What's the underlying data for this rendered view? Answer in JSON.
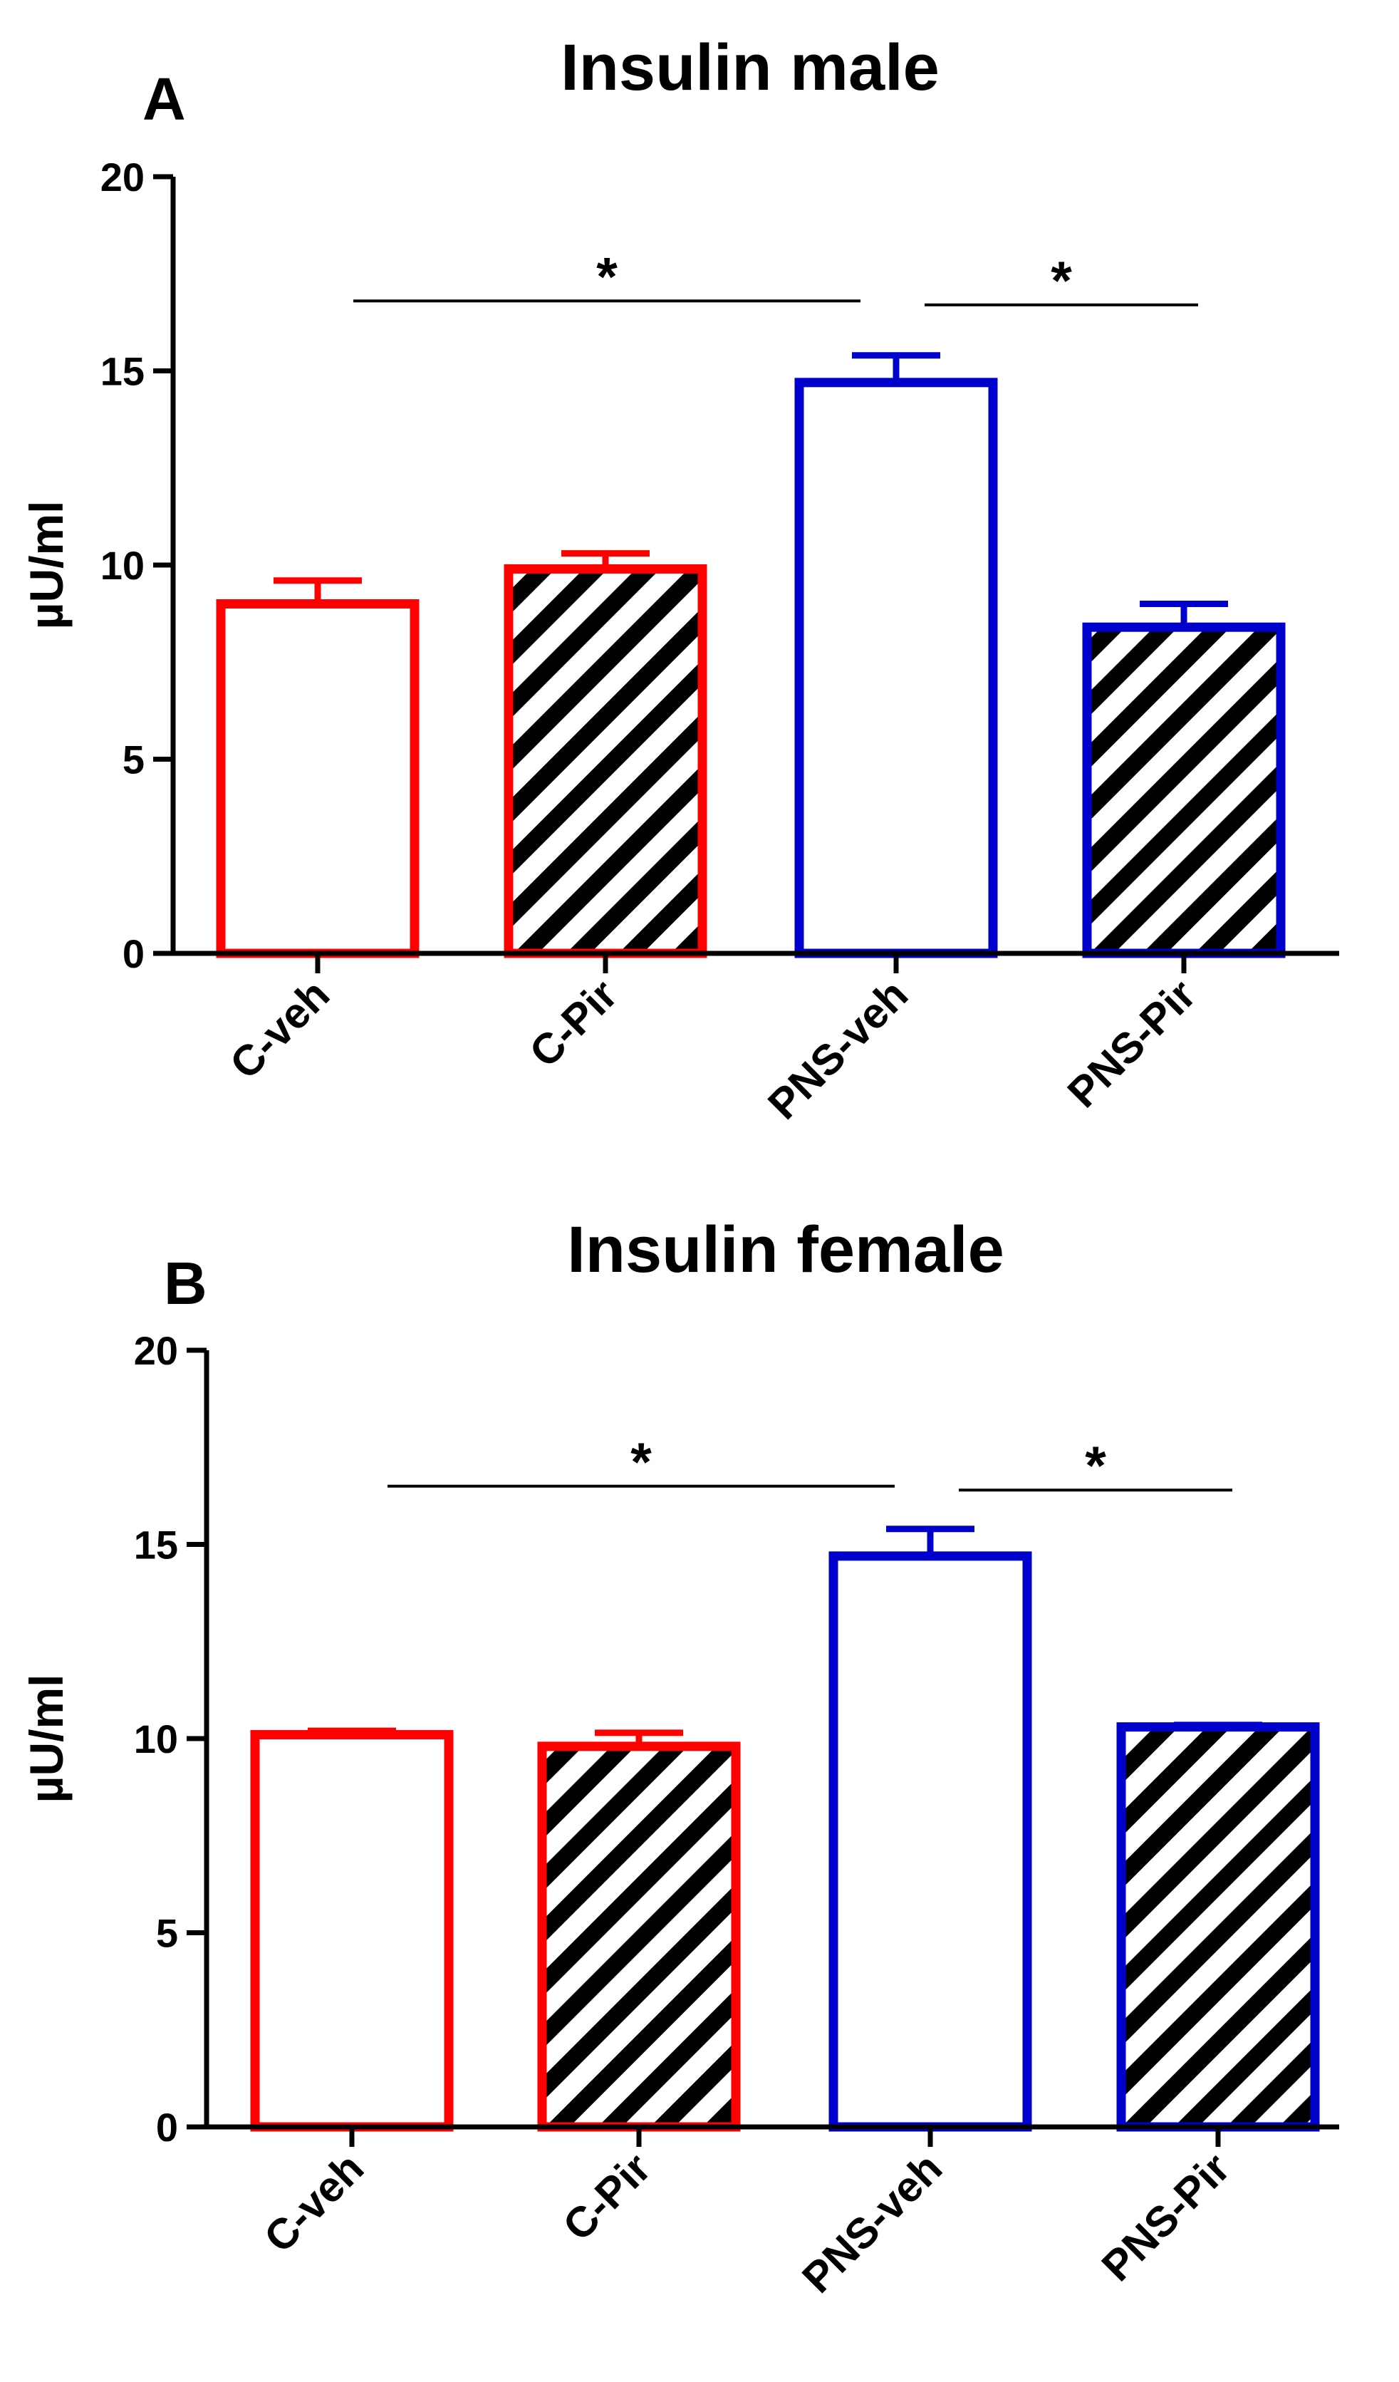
{
  "chart_data": [
    {
      "panel": "A",
      "type": "bar",
      "title": "Insulin male",
      "ylabel": "µU/ml",
      "xlabel": "",
      "ylim": [
        0,
        20
      ],
      "yticks": [
        0,
        5,
        10,
        15,
        20
      ],
      "categories": [
        "C-veh",
        "C-Pir",
        "PNS-veh",
        "PNS-Pir"
      ],
      "values": [
        9.0,
        9.9,
        14.7,
        8.4
      ],
      "errors": [
        0.6,
        0.4,
        0.7,
        0.6
      ],
      "colors": [
        "#ff0000",
        "#ff0000",
        "#0000cc",
        "#0000cc"
      ],
      "patterns": [
        "none",
        "hatched",
        "none",
        "hatched"
      ],
      "significance": [
        {
          "from": "C-veh",
          "to": "PNS-veh",
          "label": "*",
          "level": 16.8
        },
        {
          "from": "PNS-veh",
          "to": "PNS-Pir",
          "label": "*",
          "level": 16.7
        }
      ]
    },
    {
      "panel": "B",
      "type": "bar",
      "title": "Insulin female",
      "ylabel": "µU/ml",
      "xlabel": "",
      "ylim": [
        0,
        20
      ],
      "yticks": [
        0,
        5,
        10,
        15,
        20
      ],
      "categories": [
        "C-veh",
        "C-Pir",
        "PNS-veh",
        "PNS-Pir"
      ],
      "values": [
        10.1,
        9.8,
        14.7,
        10.3
      ],
      "errors": [
        0.1,
        0.35,
        0.7,
        0.05
      ],
      "colors": [
        "#ff0000",
        "#ff0000",
        "#0000cc",
        "#0000cc"
      ],
      "patterns": [
        "none",
        "hatched",
        "none",
        "hatched"
      ],
      "significance": [
        {
          "from": "C-veh",
          "to": "PNS-veh",
          "label": "*",
          "level": 16.5
        },
        {
          "from": "PNS-veh",
          "to": "PNS-Pir",
          "label": "*",
          "level": 16.4
        }
      ]
    }
  ]
}
